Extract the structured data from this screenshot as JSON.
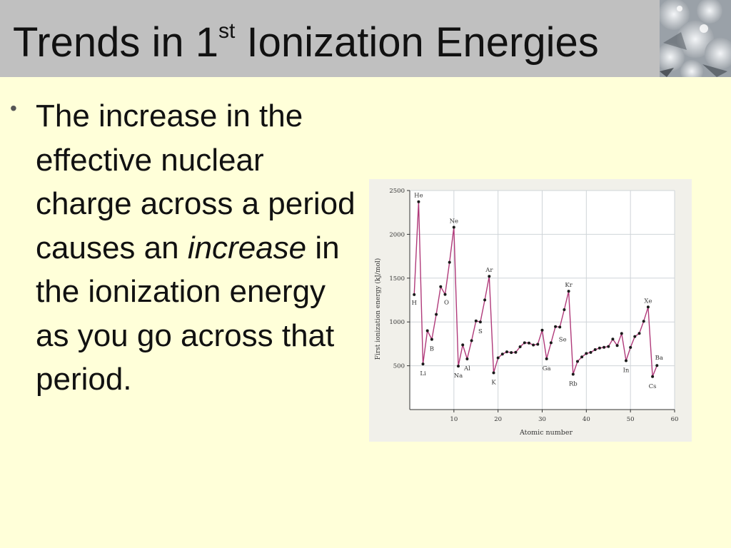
{
  "slide": {
    "title_main": "Trends in 1",
    "title_sup": "st",
    "title_rest": " Ionization Energies",
    "bullet_before": "The increase in the effective nuclear charge across a period causes an ",
    "bullet_emphasis": "increase",
    "bullet_after": " in the ionization energy as you go across that period."
  },
  "colors": {
    "background": "#ffffd9",
    "title_bar": "#c0c0c0",
    "series_line": "#b03a7a",
    "marker": "#1a1a1a"
  },
  "chart_data": {
    "type": "line",
    "title": "",
    "xlabel": "Atomic number",
    "ylabel": "First ionization energy (kJ/mol)",
    "xlim": [
      0,
      60
    ],
    "ylim": [
      0,
      2500
    ],
    "xticks": [
      10,
      20,
      30,
      40,
      50,
      60
    ],
    "yticks": [
      500,
      1000,
      1500,
      2000,
      2500
    ],
    "grid": true,
    "x": [
      1,
      2,
      3,
      4,
      5,
      6,
      7,
      8,
      9,
      10,
      11,
      12,
      13,
      14,
      15,
      16,
      17,
      18,
      19,
      20,
      21,
      22,
      23,
      24,
      25,
      26,
      27,
      28,
      29,
      30,
      31,
      32,
      33,
      34,
      35,
      36,
      37,
      38,
      39,
      40,
      41,
      42,
      43,
      44,
      45,
      46,
      47,
      48,
      49,
      50,
      51,
      52,
      53,
      54,
      55,
      56
    ],
    "values": [
      1312,
      2372,
      520,
      900,
      801,
      1086,
      1402,
      1314,
      1681,
      2081,
      496,
      738,
      578,
      787,
      1012,
      1000,
      1251,
      1521,
      419,
      590,
      633,
      659,
      651,
      653,
      717,
      762,
      760,
      737,
      745,
      906,
      579,
      762,
      947,
      941,
      1140,
      1351,
      403,
      550,
      600,
      640,
      652,
      684,
      702,
      710,
      720,
      804,
      731,
      868,
      558,
      709,
      834,
      869,
      1008,
      1170,
      376,
      503
    ],
    "annotations": [
      {
        "x": 1,
        "label": "H"
      },
      {
        "x": 2,
        "label": "He"
      },
      {
        "x": 3,
        "label": "Li"
      },
      {
        "x": 5,
        "label": "B"
      },
      {
        "x": 8,
        "label": "O"
      },
      {
        "x": 10,
        "label": "Ne"
      },
      {
        "x": 11,
        "label": "Na"
      },
      {
        "x": 13,
        "label": "Al"
      },
      {
        "x": 16,
        "label": "S"
      },
      {
        "x": 18,
        "label": "Ar"
      },
      {
        "x": 19,
        "label": "K"
      },
      {
        "x": 31,
        "label": "Ga"
      },
      {
        "x": 34,
        "label": "Se"
      },
      {
        "x": 36,
        "label": "Kr"
      },
      {
        "x": 37,
        "label": "Rb"
      },
      {
        "x": 49,
        "label": "In"
      },
      {
        "x": 54,
        "label": "Xe"
      },
      {
        "x": 55,
        "label": "Cs"
      },
      {
        "x": 56,
        "label": "Ba"
      }
    ]
  }
}
